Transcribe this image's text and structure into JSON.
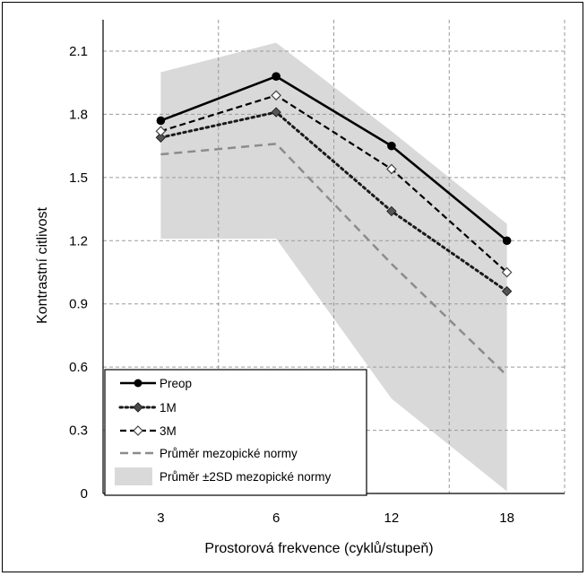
{
  "chart_data": {
    "type": "line",
    "title": "",
    "xlabel": "Prostorová frekvence (cyklů/stupeň)",
    "ylabel": "Kontrastní citlivost",
    "categories": [
      "3",
      "6",
      "12",
      "18"
    ],
    "ylim": [
      0,
      2.1
    ],
    "yticks": [
      "0",
      "0.3",
      "0.6",
      "0.9",
      "1.2",
      "1.5",
      "1.8",
      "2.1"
    ],
    "grid": "dashed",
    "legend_position": "bottom-left",
    "series": [
      {
        "name": "Preop",
        "values": [
          1.77,
          1.98,
          1.65,
          1.2
        ],
        "style": "solid",
        "marker": "circle",
        "color": "#000000"
      },
      {
        "name": "1M",
        "values": [
          1.69,
          1.81,
          1.34,
          0.96
        ],
        "style": "dotted",
        "marker": "diamond-filled",
        "color": "#1a1a1a"
      },
      {
        "name": "3M",
        "values": [
          1.72,
          1.89,
          1.54,
          1.05
        ],
        "style": "dashed",
        "marker": "diamond-open",
        "color": "#000000"
      },
      {
        "name": "Průměr mezopické normy",
        "values": [
          1.61,
          1.66,
          1.09,
          0.56
        ],
        "style": "dashed",
        "marker": "none",
        "color": "#8c8c8c"
      }
    ],
    "band": {
      "name": "Průměr ±2SD mezopické normy",
      "upper": [
        2.0,
        2.14,
        1.72,
        1.28
      ],
      "lower": [
        1.21,
        1.21,
        0.45,
        0.01
      ],
      "color": "#d9d9d9"
    }
  }
}
